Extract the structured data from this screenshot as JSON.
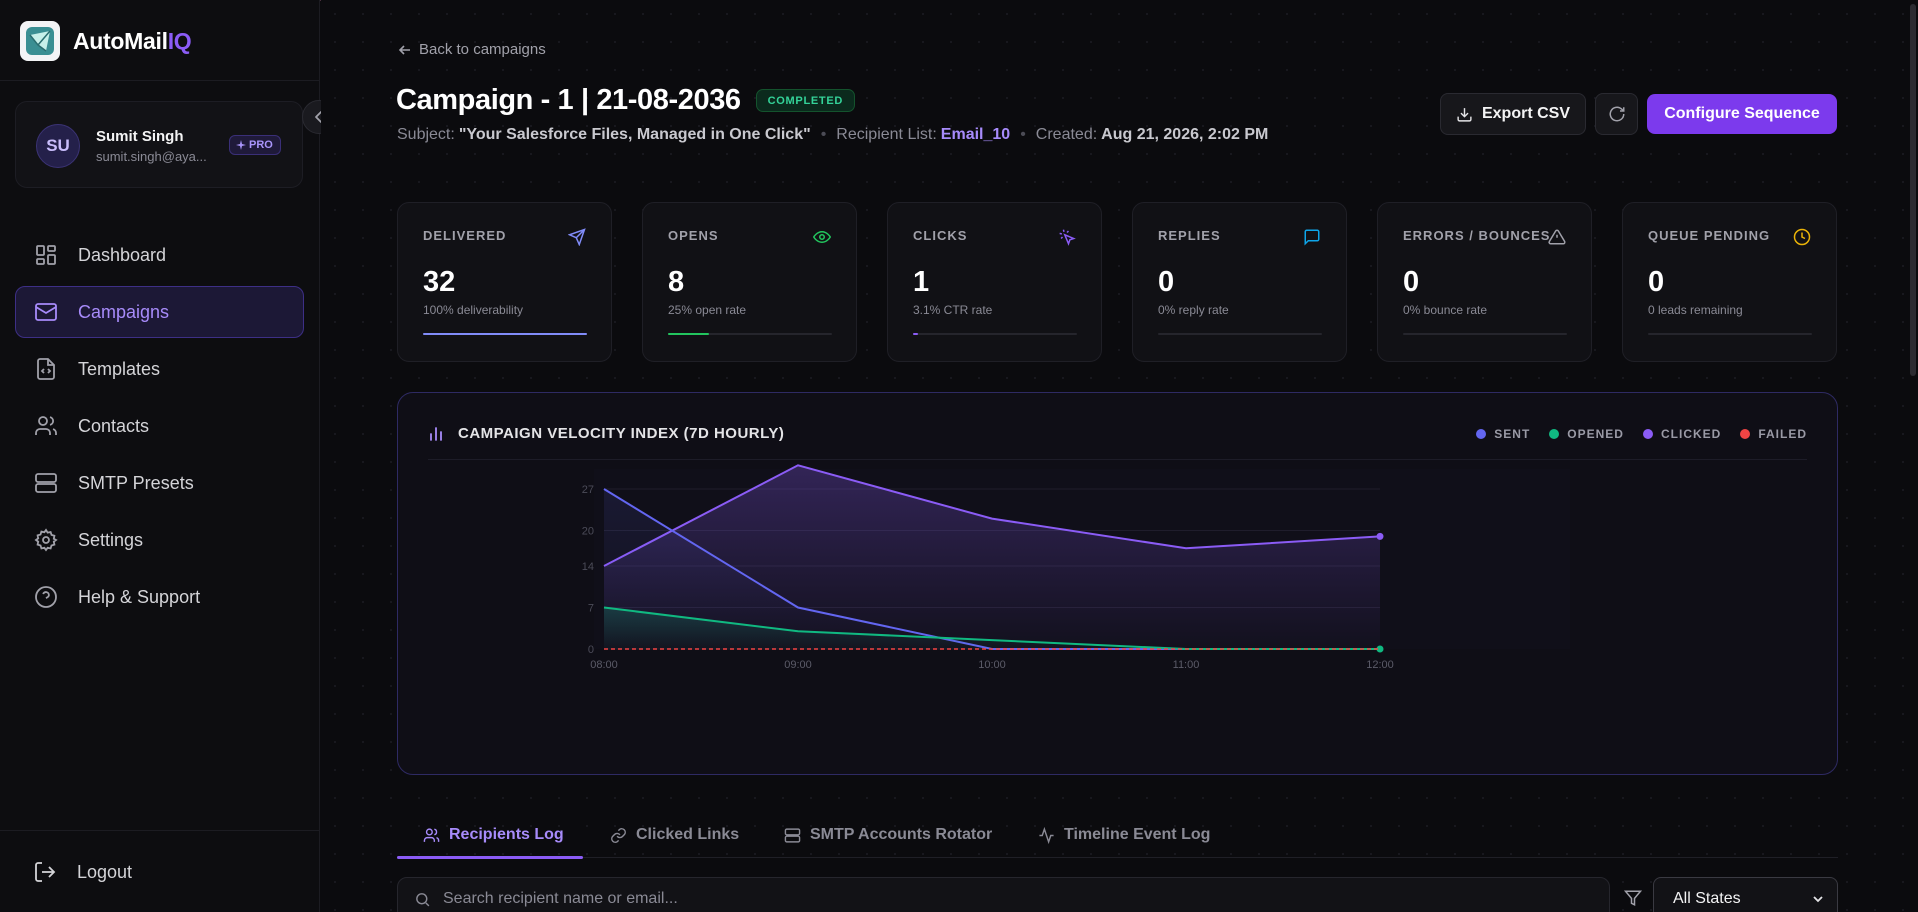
{
  "brand": {
    "name_main": "AutoMail",
    "name_accent": "IQ"
  },
  "user": {
    "initials": "SU",
    "name": "Sumit Singh",
    "email": "sumit.singh@aya...",
    "plan": "PRO"
  },
  "nav": [
    {
      "label": "Dashboard",
      "icon": "grid-icon",
      "active": false
    },
    {
      "label": "Campaigns",
      "icon": "mail-icon",
      "active": true
    },
    {
      "label": "Templates",
      "icon": "file-code-icon",
      "active": false
    },
    {
      "label": "Contacts",
      "icon": "users-icon",
      "active": false
    },
    {
      "label": "SMTP Presets",
      "icon": "server-icon",
      "active": false
    },
    {
      "label": "Settings",
      "icon": "gear-icon",
      "active": false
    },
    {
      "label": "Help & Support",
      "icon": "help-icon",
      "active": false
    }
  ],
  "logout_label": "Logout",
  "header": {
    "back_label": "Back to campaigns",
    "title": "Campaign - 1 | 21-08-2036",
    "status": "COMPLETED",
    "subject_label": "Subject:",
    "subject_value": "\"Your Salesforce Files, Managed in One Click\"",
    "recipient_label": "Recipient List:",
    "recipient_value": "Email_10",
    "created_label": "Created:",
    "created_value": "Aug 21, 2026, 2:02 PM",
    "export_label": "Export CSV",
    "configure_label": "Configure Sequence"
  },
  "stats": [
    {
      "label": "DELIVERED",
      "value": "32",
      "sub": "100% deliverability",
      "icon": "send-icon",
      "color": "#818cf8",
      "progress": 1.0
    },
    {
      "label": "OPENS",
      "value": "8",
      "sub": "25% open rate",
      "icon": "eye-icon",
      "color": "#22c55e",
      "progress": 0.25
    },
    {
      "label": "CLICKS",
      "value": "1",
      "sub": "3.1% CTR rate",
      "icon": "cursor-click-icon",
      "color": "#8b5cf6",
      "progress": 0.031
    },
    {
      "label": "REPLIES",
      "value": "0",
      "sub": "0% reply rate",
      "icon": "message-icon",
      "color": "#0ea5e9",
      "progress": 0
    },
    {
      "label": "ERRORS / BOUNCES",
      "value": "0",
      "sub": "0% bounce rate",
      "icon": "alert-triangle-icon",
      "color": "#a1a1aa",
      "progress": 0
    },
    {
      "label": "QUEUE PENDING",
      "value": "0",
      "sub": "0 leads remaining",
      "icon": "clock-icon",
      "color": "#eab308",
      "progress": 0
    }
  ],
  "chart_data": {
    "type": "line",
    "title": "CAMPAIGN VELOCITY INDEX (7D HOURLY)",
    "x": [
      "08:00",
      "09:00",
      "10:00",
      "11:00",
      "12:00"
    ],
    "yticks": [
      0,
      7,
      14,
      20,
      27
    ],
    "ylim": [
      0,
      27
    ],
    "grid": true,
    "legend_position": "top-right",
    "series": [
      {
        "name": "SENT",
        "color": "#6366f1",
        "values": [
          27,
          7,
          0,
          0,
          0
        ]
      },
      {
        "name": "OPENED",
        "color": "#10b981",
        "values": [
          7,
          3,
          1.5,
          0,
          0
        ]
      },
      {
        "name": "CLICKED",
        "color": "#8b5cf6",
        "values": [
          14,
          31,
          22,
          17,
          19
        ]
      },
      {
        "name": "FAILED",
        "color": "#ef4444",
        "values": [
          0,
          0,
          0,
          0,
          0
        ]
      }
    ]
  },
  "tabs": [
    {
      "label": "Recipients Log",
      "icon": "users-icon",
      "active": true
    },
    {
      "label": "Clicked Links",
      "icon": "link-icon",
      "active": false
    },
    {
      "label": "SMTP Accounts Rotator",
      "icon": "server-icon",
      "active": false
    },
    {
      "label": "Timeline Event Log",
      "icon": "activity-icon",
      "active": false
    }
  ],
  "search": {
    "placeholder": "Search recipient name or email..."
  },
  "filter": {
    "selected": "All States"
  }
}
